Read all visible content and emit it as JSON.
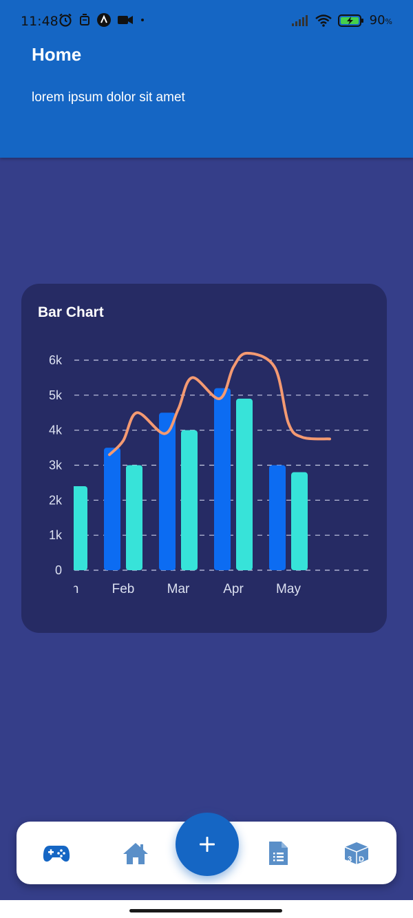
{
  "status_bar": {
    "time": "11:48",
    "battery": "90",
    "battery_unit": "%",
    "icons": [
      "alarm-icon",
      "notification-icon",
      "app-icon",
      "video-icon",
      "signal-icon",
      "wifi-icon",
      "battery-charging-icon"
    ]
  },
  "header": {
    "title": "Home",
    "subtitle": "lorem ipsum dolor sit amet",
    "color": "#1566c4"
  },
  "card": {
    "title": "Bar Chart"
  },
  "chart_data": {
    "type": "bar",
    "title": "Bar Chart",
    "categories": [
      "Jan",
      "Feb",
      "Mar",
      "Apr",
      "May"
    ],
    "series": [
      {
        "values": [
          null,
          3500,
          4500,
          5200,
          3000
        ],
        "color": "#0c6cf2"
      },
      {
        "values": [
          2400,
          3000,
          4000,
          4900,
          2800
        ],
        "color": "#37e3d9"
      }
    ],
    "line": {
      "type": "line",
      "x": [
        0.75,
        1,
        1.25,
        1.75,
        2,
        2.25,
        2.75,
        3,
        3.25,
        3.75,
        4,
        4.25,
        4.75
      ],
      "values": [
        3300,
        3700,
        4500,
        3900,
        4600,
        5500,
        4900,
        5800,
        6200,
        5800,
        4200,
        3800,
        3750
      ],
      "color": "#f49a72"
    },
    "ylim": [
      0,
      6000
    ],
    "yticks": [
      "0",
      "1k",
      "2k",
      "3k",
      "4k",
      "5k",
      "6k"
    ],
    "xticks": [
      "Jan",
      "Feb",
      "Mar",
      "Apr",
      "May"
    ],
    "grid": true,
    "grid_style": "dashed",
    "legend": "none"
  },
  "nav": {
    "items": [
      {
        "icon": "gamepad-icon",
        "color": "#1566c4"
      },
      {
        "icon": "home-icon",
        "color": "#5a8fc8"
      },
      {
        "icon": "document-icon",
        "color": "#5a8fc8"
      },
      {
        "icon": "cube-3d-icon",
        "color": "#5a8fc8"
      }
    ],
    "fab": {
      "icon": "plus-icon",
      "color": "#1566c4"
    }
  }
}
